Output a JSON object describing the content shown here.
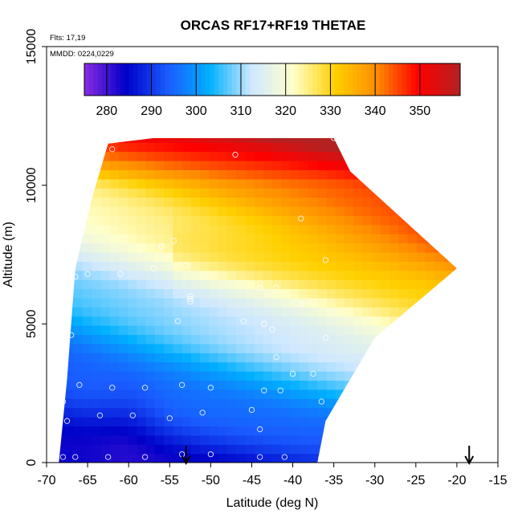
{
  "chart_data": {
    "type": "heatmap",
    "title": "ORCAS RF17+RF19 THETAE",
    "annotations": [
      "Flts: 17,19",
      "MMDD: 0224,0229"
    ],
    "xlabel": "Latitude (deg N)",
    "ylabel": "Altitude (m)",
    "xlim": [
      -70,
      -15
    ],
    "ylim": [
      0,
      15000
    ],
    "x_ticks": [
      -70,
      -65,
      -60,
      -55,
      -50,
      -45,
      -40,
      -35,
      -30,
      -25,
      -20,
      -15
    ],
    "y_ticks": [
      0,
      5000,
      10000,
      15000
    ],
    "colorbar": {
      "ticks": [
        280,
        290,
        300,
        310,
        320,
        330,
        340,
        350
      ],
      "range": [
        275,
        359
      ],
      "colors": [
        "#8a2be2",
        "#0000c8",
        "#1a5cff",
        "#00b0ff",
        "#cfe8ff",
        "#ffffcc",
        "#ffd000",
        "#ff8c00",
        "#ff0000",
        "#b22222"
      ]
    },
    "domain_polygon": [
      [
        -68.5,
        0
      ],
      [
        -67.5,
        3000
      ],
      [
        -66.5,
        7000
      ],
      [
        -64.5,
        9500
      ],
      [
        -62.5,
        11500
      ],
      [
        -57,
        11700
      ],
      [
        -35,
        11700
      ],
      [
        -33,
        10500
      ],
      [
        -20,
        7000
      ],
      [
        -30,
        4500
      ],
      [
        -36,
        1500
      ],
      [
        -37,
        0
      ]
    ],
    "flight_points": [
      [
        -68,
        200
      ],
      [
        -66.5,
        200
      ],
      [
        -62.5,
        200
      ],
      [
        -58,
        200
      ],
      [
        -53.5,
        300
      ],
      [
        -50,
        300
      ],
      [
        -44,
        200
      ],
      [
        -41,
        200
      ],
      [
        -36.5,
        200
      ],
      [
        -67.5,
        1500
      ],
      [
        -63.5,
        1700
      ],
      [
        -59.5,
        1700
      ],
      [
        -55,
        1600
      ],
      [
        -51,
        1800
      ],
      [
        -45,
        1900
      ],
      [
        -44,
        1200
      ],
      [
        -68,
        2200
      ],
      [
        -66,
        2800
      ],
      [
        -62,
        2700
      ],
      [
        -58,
        2700
      ],
      [
        -53.5,
        2800
      ],
      [
        -50,
        2700
      ],
      [
        -43.5,
        2600
      ],
      [
        -41.5,
        2600
      ],
      [
        -36.5,
        2200
      ],
      [
        -40,
        3200
      ],
      [
        -37.5,
        3200
      ],
      [
        -42,
        3800
      ],
      [
        -36,
        4500
      ],
      [
        -67,
        4600
      ],
      [
        -54,
        5100
      ],
      [
        -46,
        5100
      ],
      [
        -43.5,
        5000
      ],
      [
        -42.5,
        4800
      ],
      [
        -52.5,
        5800
      ],
      [
        -52.5,
        5900
      ],
      [
        -52.5,
        6000
      ],
      [
        -39,
        5700
      ],
      [
        -42,
        6300
      ],
      [
        -66.5,
        6700
      ],
      [
        -65,
        6800
      ],
      [
        -61,
        6800
      ],
      [
        -57,
        7000
      ],
      [
        -53,
        7100
      ],
      [
        -36,
        7300
      ],
      [
        -66,
        8000
      ],
      [
        -54.5,
        8000
      ],
      [
        -39,
        8800
      ],
      [
        -47,
        11100
      ],
      [
        -35,
        11700
      ],
      [
        -62,
        11300
      ],
      [
        -56,
        7800
      ],
      [
        -44,
        6300
      ]
    ],
    "markers": [
      {
        "lat": -53,
        "label": "arrow"
      },
      {
        "lat": -18.5,
        "label": "arrow"
      }
    ]
  }
}
